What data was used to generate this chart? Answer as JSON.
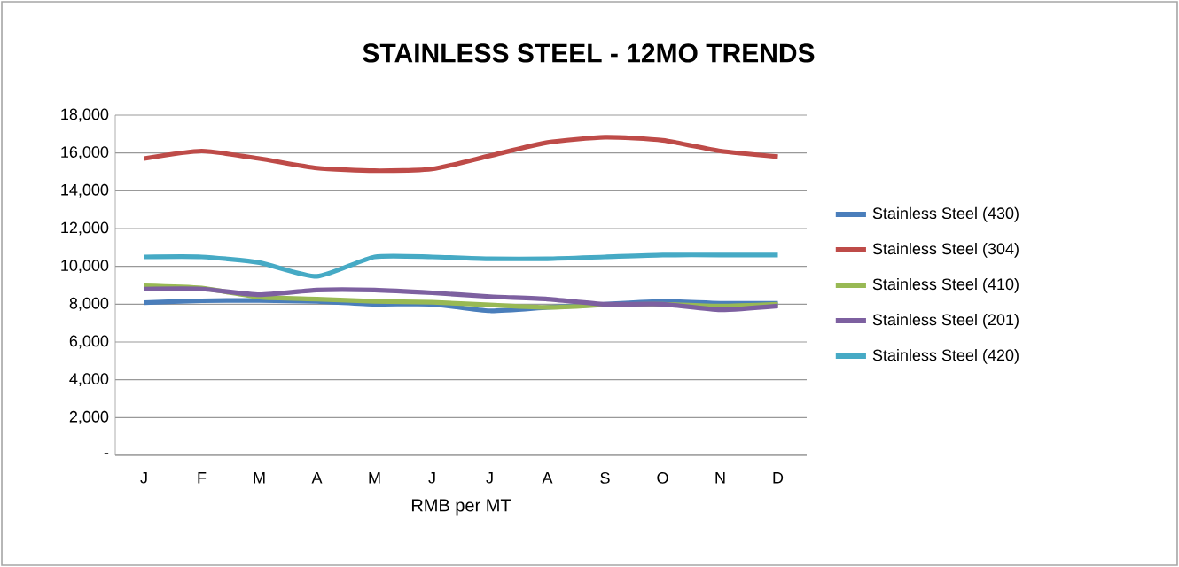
{
  "chart_data": {
    "type": "line",
    "title": "STAINLESS STEEL - 12MO TRENDS",
    "xlabel": "RMB per MT",
    "categories": [
      "J",
      "F",
      "M",
      "A",
      "M",
      "J",
      "J",
      "A",
      "S",
      "O",
      "N",
      "D"
    ],
    "series": [
      {
        "name": "Stainless Steel (430)",
        "color": "#4a7ebb",
        "values": [
          8080,
          8180,
          8200,
          8150,
          8000,
          8000,
          7650,
          7830,
          8000,
          8150,
          8050,
          8050
        ]
      },
      {
        "name": "Stainless Steel (304)",
        "color": "#be4b48",
        "values": [
          15700,
          16100,
          15700,
          15200,
          15060,
          15150,
          15850,
          16550,
          16830,
          16670,
          16100,
          15800
        ]
      },
      {
        "name": "Stainless Steel (410)",
        "color": "#98b954",
        "values": [
          8970,
          8850,
          8370,
          8270,
          8150,
          8100,
          7960,
          7830,
          7960,
          8000,
          7900,
          8000
        ]
      },
      {
        "name": "Stainless Steel (201)",
        "color": "#7d60a0",
        "values": [
          8800,
          8800,
          8500,
          8750,
          8750,
          8600,
          8400,
          8270,
          8000,
          8000,
          7700,
          7900
        ]
      },
      {
        "name": "Stainless Steel (420)",
        "color": "#46aac5",
        "values": [
          10500,
          10500,
          10200,
          9470,
          10500,
          10500,
          10400,
          10400,
          10500,
          10600,
          10600,
          10600
        ]
      }
    ],
    "ylim": [
      0,
      18000
    ],
    "yticks": [
      {
        "value": 0,
        "label": "-"
      },
      {
        "value": 2000,
        "label": "2,000"
      },
      {
        "value": 4000,
        "label": "4,000"
      },
      {
        "value": 6000,
        "label": "6,000"
      },
      {
        "value": 8000,
        "label": "8,000"
      },
      {
        "value": 10000,
        "label": "10,000"
      },
      {
        "value": 12000,
        "label": "12,000"
      },
      {
        "value": 14000,
        "label": "14,000"
      },
      {
        "value": 16000,
        "label": "16,000"
      },
      {
        "value": 18000,
        "label": "18,000"
      }
    ],
    "grid": "y",
    "legend": "right",
    "marker": "none"
  }
}
